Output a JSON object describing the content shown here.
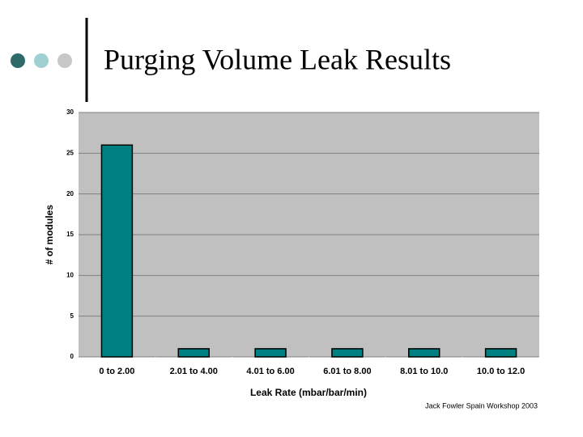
{
  "chart_data": {
    "type": "bar",
    "title": "Purging Volume Leak Results",
    "x_label": "Leak Rate (mbar/bar/min)",
    "y_label": "# of modules",
    "categories": [
      "0 to 2.00",
      "2.01 to 4.00",
      "4.01 to 6.00",
      "6.01 to 8.00",
      "8.01 to 10.0",
      "10.0 to 12.0"
    ],
    "values": [
      26,
      1,
      1,
      1,
      1,
      1
    ],
    "color": "#008080",
    "ylim": [
      0,
      30
    ],
    "yticks": [
      0,
      5,
      10,
      15,
      20,
      25,
      30
    ],
    "grid": true
  },
  "footer": "Jack Fowler Spain Workshop 2003"
}
